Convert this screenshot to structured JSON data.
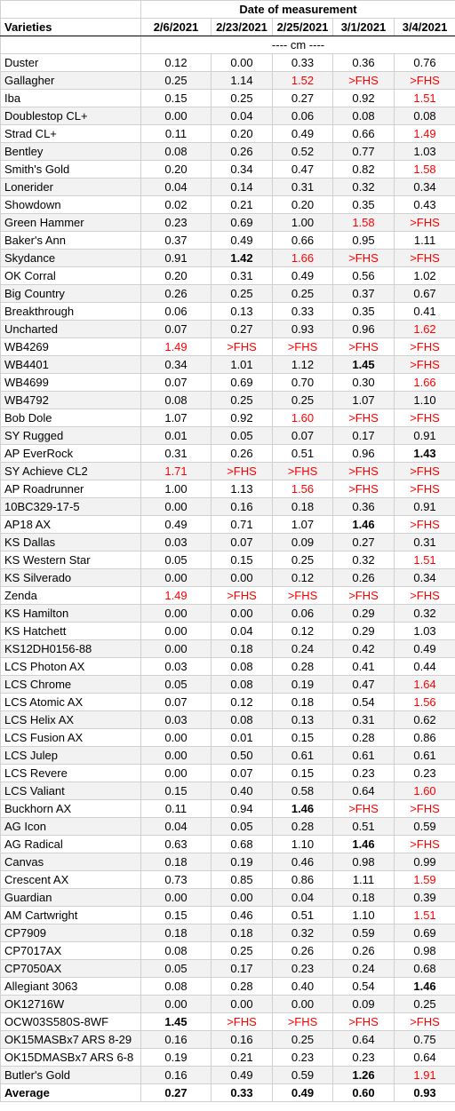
{
  "header": {
    "group_title": "Date of measurement",
    "varieties_label": "Varieties",
    "dates": [
      "2/6/2021",
      "2/23/2021",
      "2/25/2021",
      "3/1/2021",
      "3/4/2021"
    ],
    "units": "---- cm ----"
  },
  "rows": [
    {
      "name": "Duster",
      "v": [
        "0.12",
        "0.00",
        "0.33",
        "0.36",
        "0.76"
      ],
      "s": [
        "",
        "",
        "",
        "",
        ""
      ]
    },
    {
      "name": "Gallagher",
      "v": [
        "0.25",
        "1.14",
        "1.52",
        ">FHS",
        ">FHS"
      ],
      "s": [
        "",
        "",
        "r",
        "r",
        "r"
      ]
    },
    {
      "name": "Iba",
      "v": [
        "0.15",
        "0.25",
        "0.27",
        "0.92",
        "1.51"
      ],
      "s": [
        "",
        "",
        "",
        "",
        "r"
      ]
    },
    {
      "name": "Doublestop CL+",
      "v": [
        "0.00",
        "0.04",
        "0.06",
        "0.08",
        "0.08"
      ],
      "s": [
        "",
        "",
        "",
        "",
        ""
      ]
    },
    {
      "name": "Strad CL+",
      "v": [
        "0.11",
        "0.20",
        "0.49",
        "0.66",
        "1.49"
      ],
      "s": [
        "",
        "",
        "",
        "",
        "r"
      ]
    },
    {
      "name": "Bentley",
      "v": [
        "0.08",
        "0.26",
        "0.52",
        "0.77",
        "1.03"
      ],
      "s": [
        "",
        "",
        "",
        "",
        ""
      ]
    },
    {
      "name": "Smith's Gold",
      "v": [
        "0.20",
        "0.34",
        "0.47",
        "0.82",
        "1.58"
      ],
      "s": [
        "",
        "",
        "",
        "",
        "r"
      ]
    },
    {
      "name": "Lonerider",
      "v": [
        "0.04",
        "0.14",
        "0.31",
        "0.32",
        "0.34"
      ],
      "s": [
        "",
        "",
        "",
        "",
        ""
      ]
    },
    {
      "name": "Showdown",
      "v": [
        "0.02",
        "0.21",
        "0.20",
        "0.35",
        "0.43"
      ],
      "s": [
        "",
        "",
        "",
        "",
        ""
      ]
    },
    {
      "name": "Green Hammer",
      "v": [
        "0.23",
        "0.69",
        "1.00",
        "1.58",
        ">FHS"
      ],
      "s": [
        "",
        "",
        "",
        "r",
        "r"
      ]
    },
    {
      "name": "Baker's Ann",
      "v": [
        "0.37",
        "0.49",
        "0.66",
        "0.95",
        "1.11"
      ],
      "s": [
        "",
        "",
        "",
        "",
        ""
      ]
    },
    {
      "name": "Skydance",
      "v": [
        "0.91",
        "1.42",
        "1.66",
        ">FHS",
        ">FHS"
      ],
      "s": [
        "",
        "b",
        "r",
        "r",
        "r"
      ]
    },
    {
      "name": "OK Corral",
      "v": [
        "0.20",
        "0.31",
        "0.49",
        "0.56",
        "1.02"
      ],
      "s": [
        "",
        "",
        "",
        "",
        ""
      ]
    },
    {
      "name": "Big Country",
      "v": [
        "0.26",
        "0.25",
        "0.25",
        "0.37",
        "0.67"
      ],
      "s": [
        "",
        "",
        "",
        "",
        ""
      ]
    },
    {
      "name": "Breakthrough",
      "v": [
        "0.06",
        "0.13",
        "0.33",
        "0.35",
        "0.41"
      ],
      "s": [
        "",
        "",
        "",
        "",
        ""
      ]
    },
    {
      "name": "Uncharted",
      "v": [
        "0.07",
        "0.27",
        "0.93",
        "0.96",
        "1.62"
      ],
      "s": [
        "",
        "",
        "",
        "",
        "r"
      ]
    },
    {
      "name": "WB4269",
      "v": [
        "1.49",
        ">FHS",
        ">FHS",
        ">FHS",
        ">FHS"
      ],
      "s": [
        "r",
        "r",
        "r",
        "r",
        "r"
      ]
    },
    {
      "name": "WB4401",
      "v": [
        "0.34",
        "1.01",
        "1.12",
        "1.45",
        ">FHS"
      ],
      "s": [
        "",
        "",
        "",
        "b",
        "r"
      ]
    },
    {
      "name": "WB4699",
      "v": [
        "0.07",
        "0.69",
        "0.70",
        "0.30",
        "1.66"
      ],
      "s": [
        "",
        "",
        "",
        "",
        "r"
      ]
    },
    {
      "name": "WB4792",
      "v": [
        "0.08",
        "0.25",
        "0.25",
        "1.07",
        "1.10"
      ],
      "s": [
        "",
        "",
        "",
        "",
        ""
      ]
    },
    {
      "name": "Bob Dole",
      "v": [
        "1.07",
        "0.92",
        "1.60",
        ">FHS",
        ">FHS"
      ],
      "s": [
        "",
        "",
        "r",
        "r",
        "r"
      ]
    },
    {
      "name": "SY Rugged",
      "v": [
        "0.01",
        "0.05",
        "0.07",
        "0.17",
        "0.91"
      ],
      "s": [
        "",
        "",
        "",
        "",
        ""
      ]
    },
    {
      "name": "AP EverRock",
      "v": [
        "0.31",
        "0.26",
        "0.51",
        "0.96",
        "1.43"
      ],
      "s": [
        "",
        "",
        "",
        "",
        "b"
      ]
    },
    {
      "name": "SY Achieve CL2",
      "v": [
        "1.71",
        ">FHS",
        ">FHS",
        ">FHS",
        ">FHS"
      ],
      "s": [
        "r",
        "r",
        "r",
        "r",
        "r"
      ]
    },
    {
      "name": "AP Roadrunner",
      "v": [
        "1.00",
        "1.13",
        "1.56",
        ">FHS",
        ">FHS"
      ],
      "s": [
        "",
        "",
        "r",
        "r",
        "r"
      ]
    },
    {
      "name": "10BC329-17-5",
      "v": [
        "0.00",
        "0.16",
        "0.18",
        "0.36",
        "0.91"
      ],
      "s": [
        "",
        "",
        "",
        "",
        ""
      ]
    },
    {
      "name": "AP18 AX",
      "v": [
        "0.49",
        "0.71",
        "1.07",
        "1.46",
        ">FHS"
      ],
      "s": [
        "",
        "",
        "",
        "b",
        "r"
      ]
    },
    {
      "name": "KS Dallas",
      "v": [
        "0.03",
        "0.07",
        "0.09",
        "0.27",
        "0.31"
      ],
      "s": [
        "",
        "",
        "",
        "",
        ""
      ]
    },
    {
      "name": "KS Western Star",
      "v": [
        "0.05",
        "0.15",
        "0.25",
        "0.32",
        "1.51"
      ],
      "s": [
        "",
        "",
        "",
        "",
        "r"
      ]
    },
    {
      "name": "KS Silverado",
      "v": [
        "0.00",
        "0.00",
        "0.12",
        "0.26",
        "0.34"
      ],
      "s": [
        "",
        "",
        "",
        "",
        ""
      ]
    },
    {
      "name": "Zenda",
      "v": [
        "1.49",
        ">FHS",
        ">FHS",
        ">FHS",
        ">FHS"
      ],
      "s": [
        "r",
        "r",
        "r",
        "r",
        "r"
      ]
    },
    {
      "name": "KS Hamilton",
      "v": [
        "0.00",
        "0.00",
        "0.06",
        "0.29",
        "0.32"
      ],
      "s": [
        "",
        "",
        "",
        "",
        ""
      ]
    },
    {
      "name": "KS Hatchett",
      "v": [
        "0.00",
        "0.04",
        "0.12",
        "0.29",
        "1.03"
      ],
      "s": [
        "",
        "",
        "",
        "",
        ""
      ]
    },
    {
      "name": "KS12DH0156-88",
      "v": [
        "0.00",
        "0.18",
        "0.24",
        "0.42",
        "0.49"
      ],
      "s": [
        "",
        "",
        "",
        "",
        ""
      ]
    },
    {
      "name": "LCS Photon AX",
      "v": [
        "0.03",
        "0.08",
        "0.28",
        "0.41",
        "0.44"
      ],
      "s": [
        "",
        "",
        "",
        "",
        ""
      ]
    },
    {
      "name": "LCS Chrome",
      "v": [
        "0.05",
        "0.08",
        "0.19",
        "0.47",
        "1.64"
      ],
      "s": [
        "",
        "",
        "",
        "",
        "r"
      ]
    },
    {
      "name": "LCS Atomic AX",
      "v": [
        "0.07",
        "0.12",
        "0.18",
        "0.54",
        "1.56"
      ],
      "s": [
        "",
        "",
        "",
        "",
        "r"
      ]
    },
    {
      "name": "LCS Helix AX",
      "v": [
        "0.03",
        "0.08",
        "0.13",
        "0.31",
        "0.62"
      ],
      "s": [
        "",
        "",
        "",
        "",
        ""
      ]
    },
    {
      "name": "LCS Fusion AX",
      "v": [
        "0.00",
        "0.01",
        "0.15",
        "0.28",
        "0.86"
      ],
      "s": [
        "",
        "",
        "",
        "",
        ""
      ]
    },
    {
      "name": "LCS Julep",
      "v": [
        "0.00",
        "0.50",
        "0.61",
        "0.61",
        "0.61"
      ],
      "s": [
        "",
        "",
        "",
        "",
        ""
      ]
    },
    {
      "name": "LCS Revere",
      "v": [
        "0.00",
        "0.07",
        "0.15",
        "0.23",
        "0.23"
      ],
      "s": [
        "",
        "",
        "",
        "",
        ""
      ]
    },
    {
      "name": "LCS Valiant",
      "v": [
        "0.15",
        "0.40",
        "0.58",
        "0.64",
        "1.60"
      ],
      "s": [
        "",
        "",
        "",
        "",
        "r"
      ]
    },
    {
      "name": "Buckhorn AX",
      "v": [
        "0.11",
        "0.94",
        "1.46",
        ">FHS",
        ">FHS"
      ],
      "s": [
        "",
        "",
        "b",
        "r",
        "r"
      ]
    },
    {
      "name": "AG Icon",
      "v": [
        "0.04",
        "0.05",
        "0.28",
        "0.51",
        "0.59"
      ],
      "s": [
        "",
        "",
        "",
        "",
        ""
      ]
    },
    {
      "name": "AG Radical",
      "v": [
        "0.63",
        "0.68",
        "1.10",
        "1.46",
        ">FHS"
      ],
      "s": [
        "",
        "",
        "",
        "b",
        "r"
      ]
    },
    {
      "name": "Canvas",
      "v": [
        "0.18",
        "0.19",
        "0.46",
        "0.98",
        "0.99"
      ],
      "s": [
        "",
        "",
        "",
        "",
        ""
      ]
    },
    {
      "name": "Crescent AX",
      "v": [
        "0.73",
        "0.85",
        "0.86",
        "1.11",
        "1.59"
      ],
      "s": [
        "",
        "",
        "",
        "",
        "r"
      ]
    },
    {
      "name": "Guardian",
      "v": [
        "0.00",
        "0.00",
        "0.04",
        "0.18",
        "0.39"
      ],
      "s": [
        "",
        "",
        "",
        "",
        ""
      ]
    },
    {
      "name": "AM Cartwright",
      "v": [
        "0.15",
        "0.46",
        "0.51",
        "1.10",
        "1.51"
      ],
      "s": [
        "",
        "",
        "",
        "",
        "r"
      ]
    },
    {
      "name": "CP7909",
      "v": [
        "0.18",
        "0.18",
        "0.32",
        "0.59",
        "0.69"
      ],
      "s": [
        "",
        "",
        "",
        "",
        ""
      ]
    },
    {
      "name": "CP7017AX",
      "v": [
        "0.08",
        "0.25",
        "0.26",
        "0.26",
        "0.98"
      ],
      "s": [
        "",
        "",
        "",
        "",
        ""
      ]
    },
    {
      "name": "CP7050AX",
      "v": [
        "0.05",
        "0.17",
        "0.23",
        "0.24",
        "0.68"
      ],
      "s": [
        "",
        "",
        "",
        "",
        ""
      ]
    },
    {
      "name": "Allegiant 3063",
      "v": [
        "0.08",
        "0.28",
        "0.40",
        "0.54",
        "1.46"
      ],
      "s": [
        "",
        "",
        "",
        "",
        "b"
      ]
    },
    {
      "name": "OK12716W",
      "v": [
        "0.00",
        "0.00",
        "0.00",
        "0.09",
        "0.25"
      ],
      "s": [
        "",
        "",
        "",
        "",
        ""
      ]
    },
    {
      "name": "OCW03S580S-8WF",
      "v": [
        "1.45",
        ">FHS",
        ">FHS",
        ">FHS",
        ">FHS"
      ],
      "s": [
        "b",
        "r",
        "r",
        "r",
        "r"
      ]
    },
    {
      "name": "OK15MASBx7 ARS 8-29",
      "v": [
        "0.16",
        "0.16",
        "0.25",
        "0.64",
        "0.75"
      ],
      "s": [
        "",
        "",
        "",
        "",
        ""
      ]
    },
    {
      "name": "OK15DMASBx7 ARS 6-8",
      "v": [
        "0.19",
        "0.21",
        "0.23",
        "0.23",
        "0.64"
      ],
      "s": [
        "",
        "",
        "",
        "",
        ""
      ]
    },
    {
      "name": "Butler's Gold",
      "v": [
        "0.16",
        "0.49",
        "0.59",
        "1.26",
        "1.91"
      ],
      "s": [
        "",
        "",
        "",
        "b",
        "r"
      ]
    }
  ],
  "average": {
    "label": "Average",
    "v": [
      "0.27",
      "0.33",
      "0.49",
      "0.60",
      "0.93"
    ]
  }
}
